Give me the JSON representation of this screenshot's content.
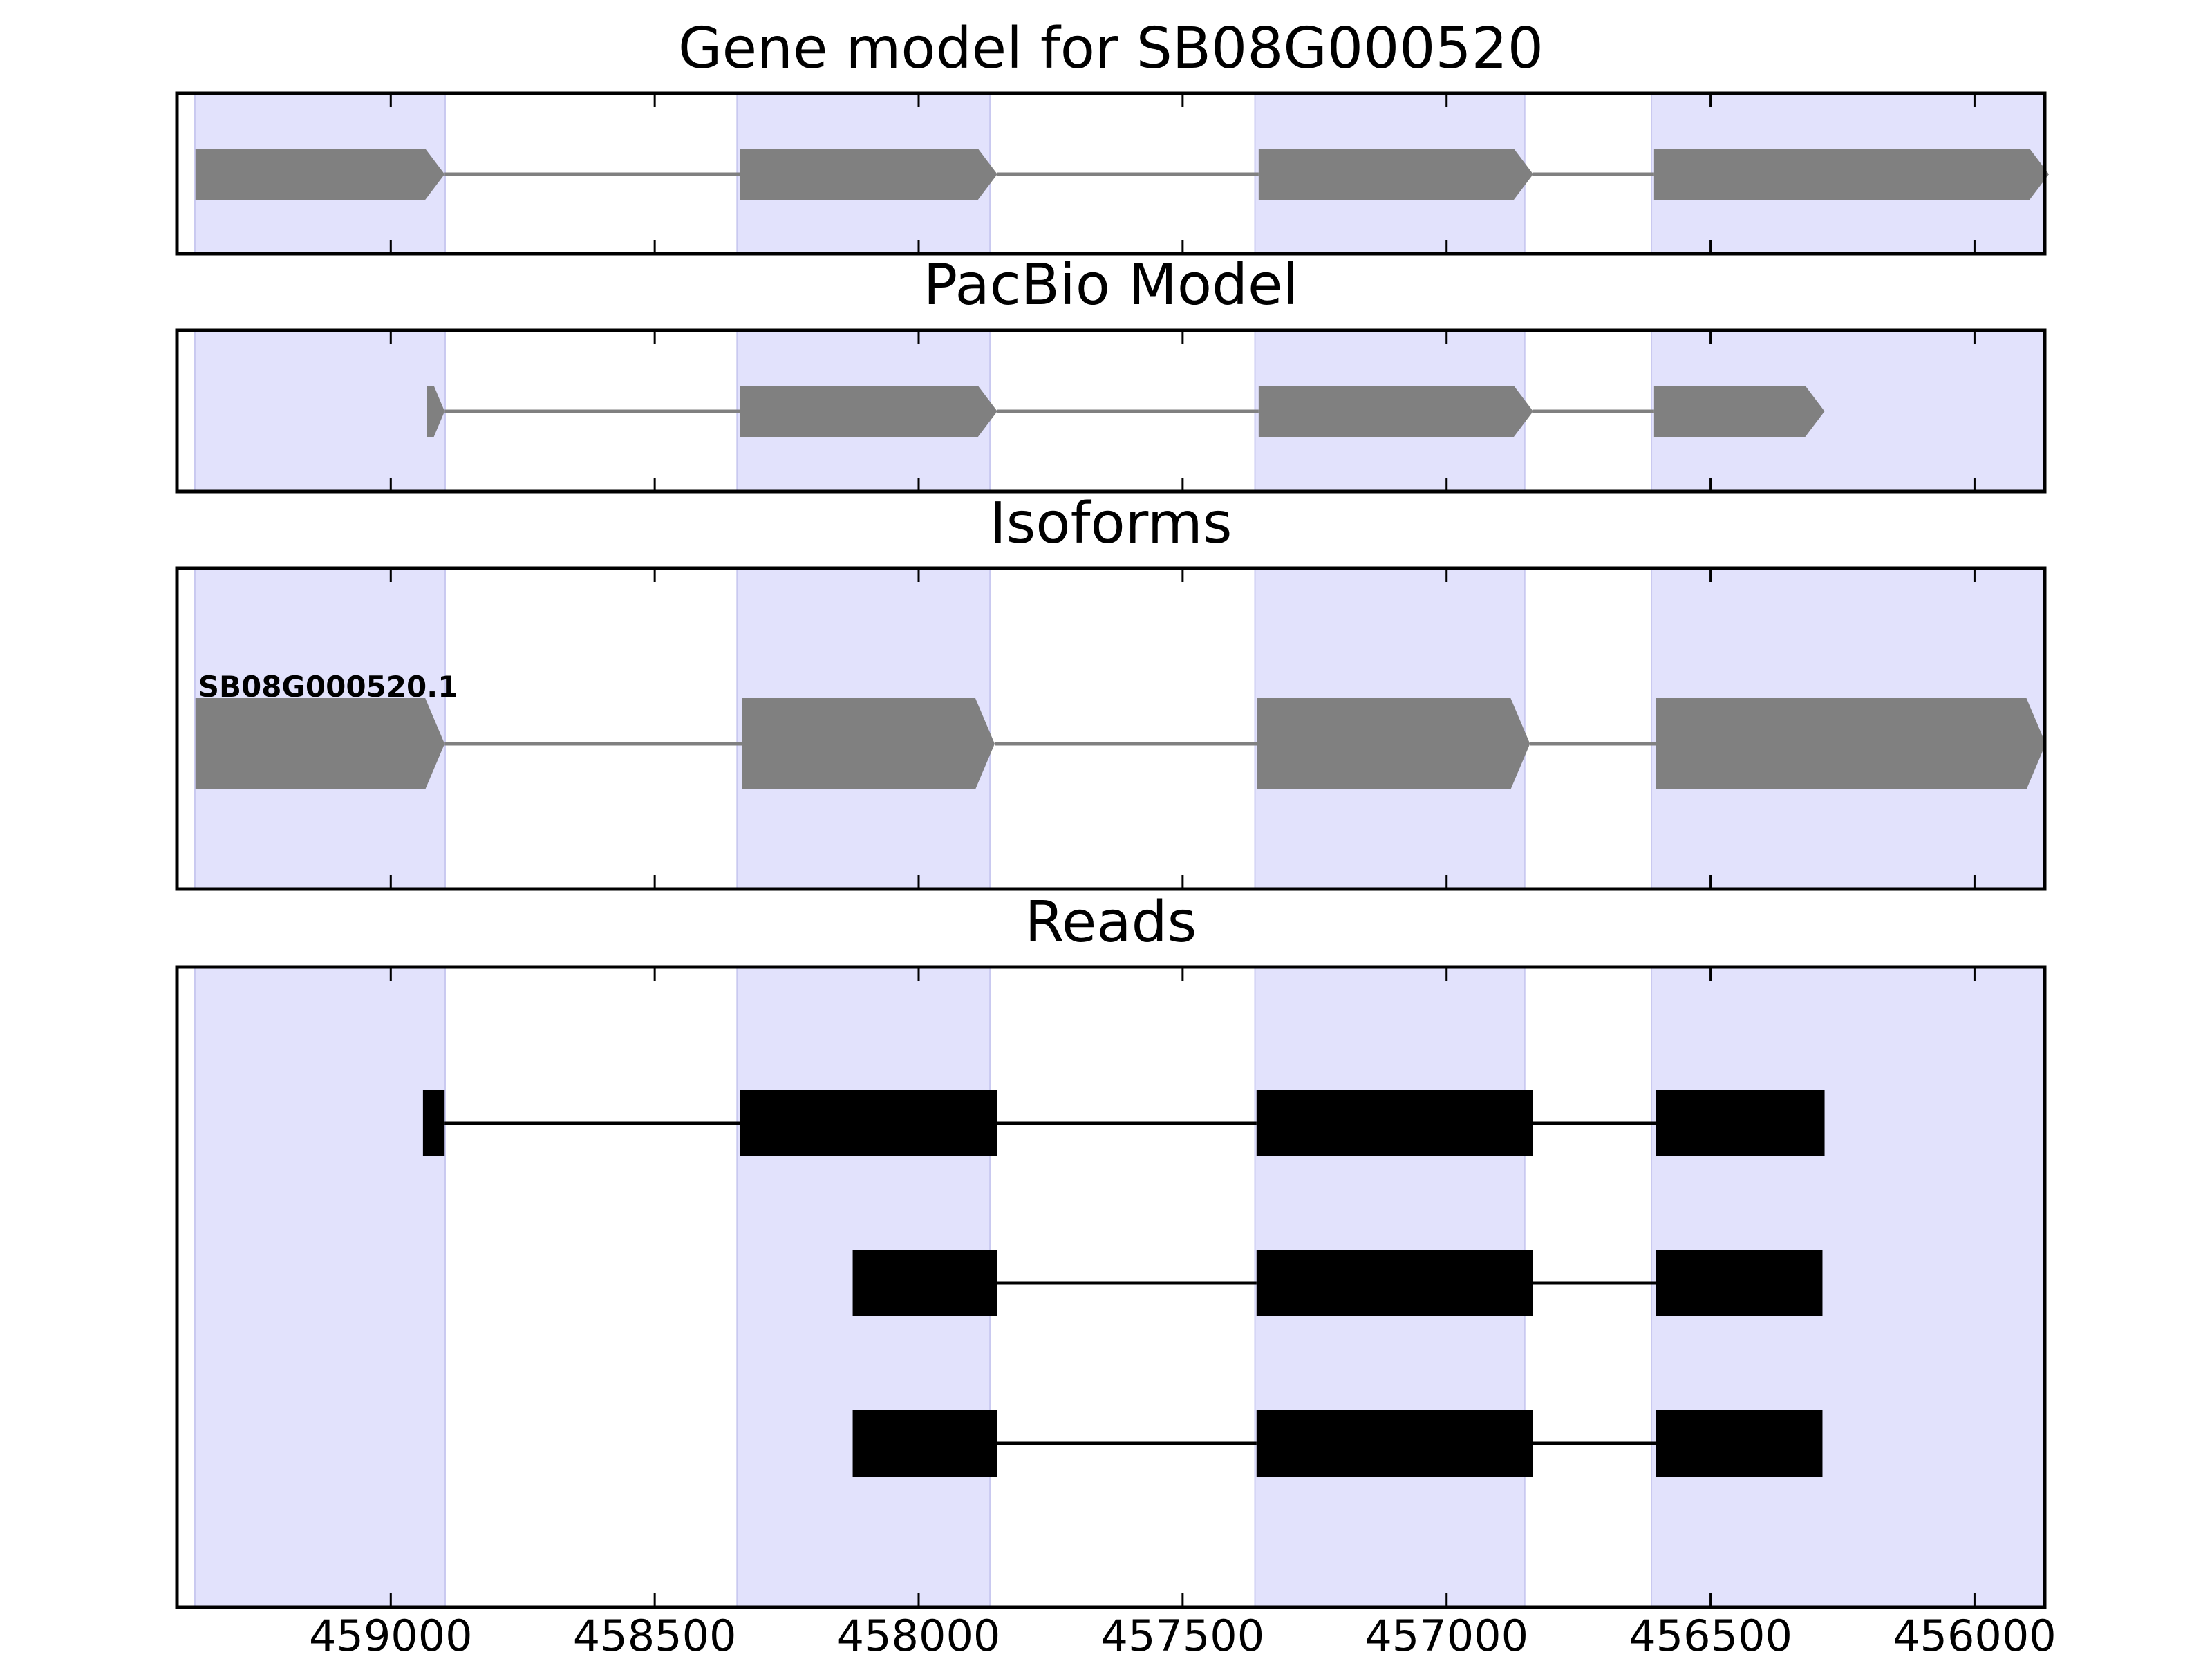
{
  "chart_data": {
    "type": "gene-track",
    "x_ticks": [
      459000,
      458500,
      458000,
      457500,
      457000,
      456500,
      456000
    ],
    "x_tick_labels": [
      "459000",
      "458500",
      "458000",
      "457500",
      "457000",
      "456500",
      "456000"
    ],
    "xlim": [
      459405,
      455867
    ],
    "x_direction": "reversed",
    "highlight_regions": [
      [
        459371,
        458897
      ],
      [
        458344,
        457865
      ],
      [
        457363,
        456852
      ],
      [
        456612,
        455866
      ]
    ],
    "colors": {
      "highlight": "#e2e2fc",
      "feature": "#808080",
      "intron_gray": "#808080",
      "read": "#000000",
      "frame": "#000000"
    },
    "panels": [
      {
        "title": "Gene model for SB08G000520",
        "style": "arrow",
        "exons": [
          [
            459370,
            458898
          ],
          [
            458338,
            457851
          ],
          [
            457356,
            456836
          ],
          [
            456607,
            455859
          ]
        ]
      },
      {
        "title": "PacBio Model",
        "style": "arrow",
        "exons": [
          [
            458932,
            458898
          ],
          [
            458338,
            457851
          ],
          [
            457356,
            456836
          ],
          [
            456607,
            456284
          ]
        ]
      },
      {
        "title": "Isoforms",
        "style": "arrow",
        "isoform_label": "SB08G000520.1",
        "exons": [
          [
            459370,
            458898
          ],
          [
            458334,
            457856
          ],
          [
            457359,
            456842
          ],
          [
            456604,
            455865
          ]
        ]
      },
      {
        "title": "Reads",
        "style": "block",
        "reads": [
          [
            [
              458939,
              458898
            ],
            [
              458338,
              457851
            ],
            [
              457360,
              456836
            ],
            [
              456604,
              456284
            ]
          ],
          [
            [
              458125,
              457851
            ],
            [
              457360,
              456836
            ],
            [
              456604,
              456288
            ]
          ],
          [
            [
              458125,
              457851
            ],
            [
              457360,
              456836
            ],
            [
              456604,
              456288
            ]
          ]
        ]
      }
    ]
  }
}
